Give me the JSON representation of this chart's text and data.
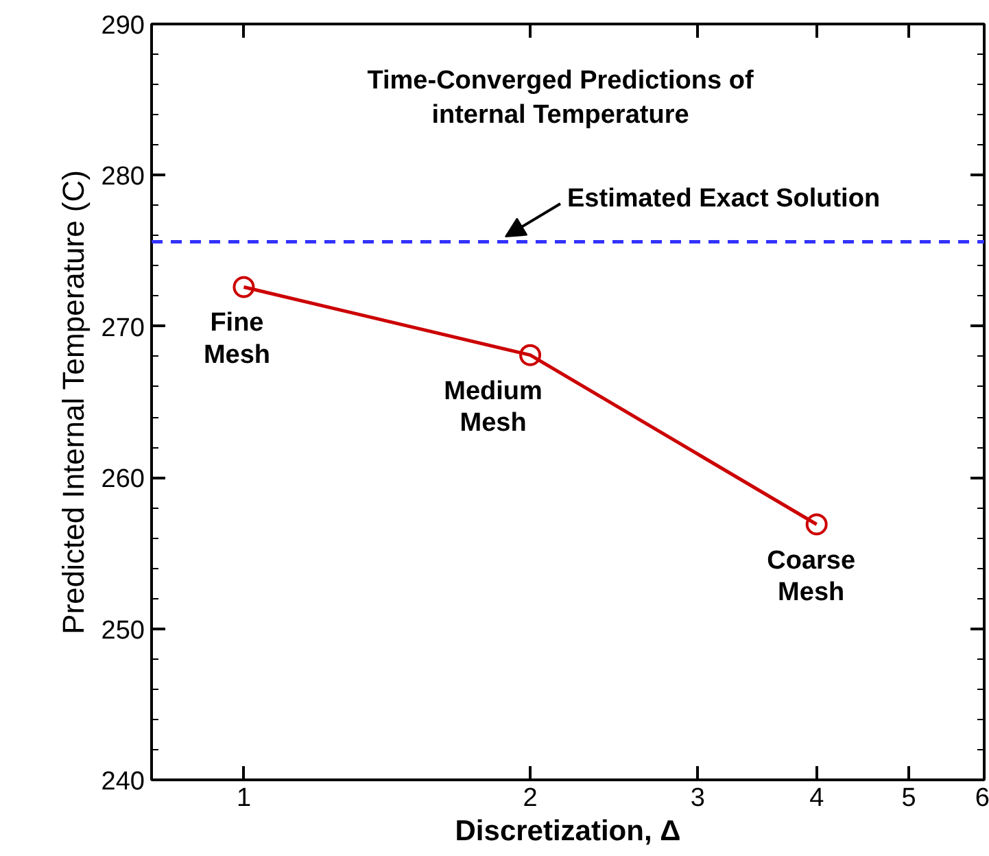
{
  "chart_data": {
    "type": "line",
    "title": "Time-Converged Predictions of\ninternal Temperature",
    "xlabel": "Discretization, Δ",
    "ylabel": "Predicted Internal Temperature (C)",
    "x": [
      1,
      2,
      4
    ],
    "series": [
      {
        "color": "#cc0000",
        "values": [
          272.6,
          268.1,
          256.9
        ]
      }
    ],
    "marker": "circle",
    "line_style": "solid",
    "log": "x",
    "xlim": [
      0.8,
      6
    ],
    "xticks": [
      1,
      2,
      3,
      4,
      5,
      6
    ],
    "ylim": [
      240,
      290
    ],
    "yticks": [
      240,
      250,
      260,
      270,
      280,
      290
    ],
    "grid": false,
    "ref_lines": [
      {
        "axis": "y",
        "value": 275.6,
        "label": "Estimated Exact Solution",
        "color": "#3333ff",
        "line_style": "dashed"
      }
    ],
    "annotations": [
      {
        "text": "Fine\nMesh",
        "x": 1,
        "y": 272.6
      },
      {
        "text": "Medium\nMesh",
        "x": 2,
        "y": 268.1
      },
      {
        "text": "Coarse\nMesh",
        "x": 4,
        "y": 256.9
      }
    ]
  }
}
